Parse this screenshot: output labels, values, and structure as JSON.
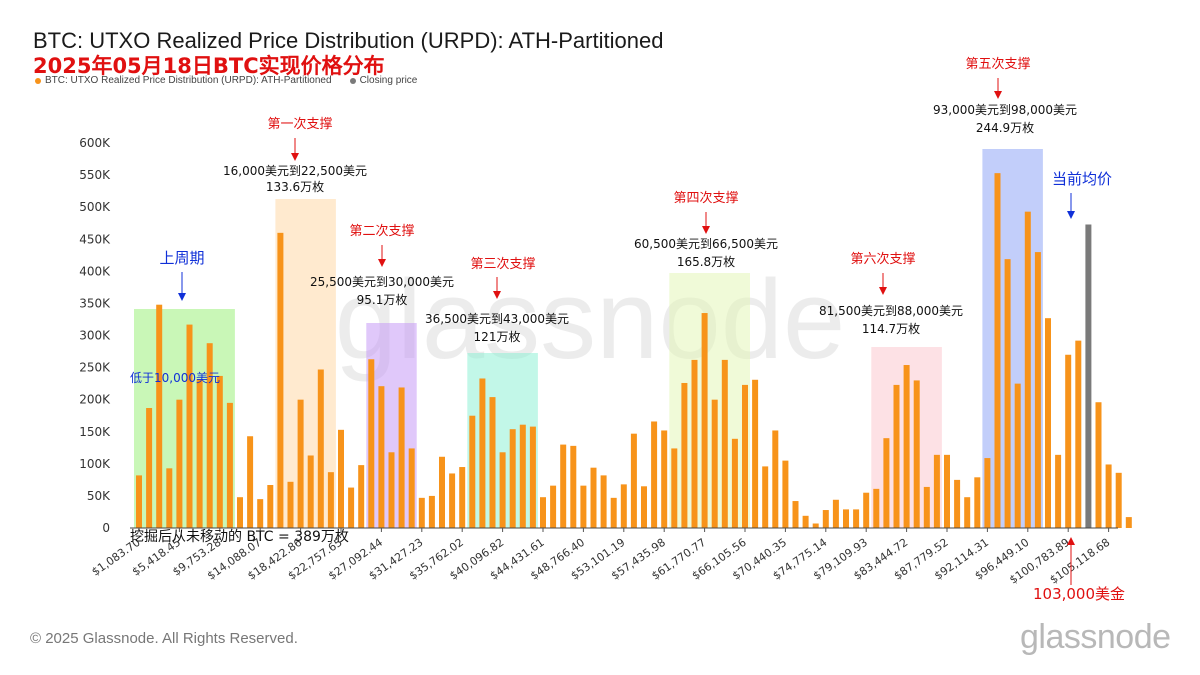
{
  "header": {
    "title": "BTC: UTXO Realized Price Distribution (URPD): ATH-Partitioned",
    "subtitle": "2025年05月18日BTC实现价格分布",
    "legend": [
      {
        "label": "BTC: UTXO Realized Price Distribution (URPD): ATH-Partitioned",
        "color": "#f7931a"
      },
      {
        "label": "Closing price",
        "color": "#7a7a7a"
      }
    ]
  },
  "footer": {
    "copyright": "© 2025 Glassnode. All Rights Reserved.",
    "brand": "glassnode",
    "watermark": "glassnode"
  },
  "chart_data": {
    "type": "bar",
    "ylim": [
      0,
      600000
    ],
    "ytick_labels": [
      "0",
      "50K",
      "100K",
      "150K",
      "200K",
      "250K",
      "300K",
      "350K",
      "400K",
      "450K",
      "500K",
      "550K",
      "600K"
    ],
    "ytick_values": [
      0,
      50000,
      100000,
      150000,
      200000,
      250000,
      300000,
      350000,
      400000,
      450000,
      500000,
      550000,
      600000
    ],
    "x_tick_labels": [
      "$1,083.70",
      "$5,418.45",
      "$9,753.28",
      "$14,088.07",
      "$18,422.86",
      "$22,757.65",
      "$27,092.44",
      "$31,427.23",
      "$35,762.02",
      "$40,096.82",
      "$44,431.61",
      "$48,766.40",
      "$53,101.19",
      "$57,435.98",
      "$61,770.77",
      "$66,105.56",
      "$70,440.35",
      "$74,775.14",
      "$79,109.93",
      "$83,444.72",
      "$87,779.52",
      "$92,114.31",
      "$96,449.10",
      "$100,783.89",
      "$105,118.68"
    ],
    "series": [
      {
        "name": "BTC: UTXO Realized Price Distribution (URPD): ATH-Partitioned",
        "color": "#f7931a",
        "values": [
          82000,
          187000,
          348000,
          93000,
          200000,
          317000,
          232000,
          288000,
          237000,
          195000,
          48000,
          143000,
          45000,
          67000,
          460000,
          72000,
          200000,
          113000,
          247000,
          87000,
          153000,
          63000,
          98000,
          263000,
          221000,
          118000,
          219000,
          124000,
          47000,
          50000,
          111000,
          85000,
          95000,
          175000,
          233000,
          204000,
          118000,
          154000,
          161000,
          158000,
          48000,
          66000,
          130000,
          128000,
          66000,
          94000,
          82000,
          47000,
          68000,
          147000,
          65000,
          166000,
          152000,
          124000,
          226000,
          262000,
          335000,
          200000,
          262000,
          139000,
          223000,
          231000,
          96000,
          152000,
          105000,
          42000,
          19000,
          7000,
          28000,
          44000,
          29000,
          29000,
          55000,
          61000,
          140000,
          223000,
          254000,
          230000,
          64000,
          114000,
          114000,
          75000,
          48000,
          79000,
          109000,
          553000,
          419000,
          225000,
          493000,
          430000,
          327000,
          114000,
          270000,
          292000,
          473000,
          196000,
          99000,
          86000,
          17000
        ]
      },
      {
        "name": "Closing price",
        "color": "#7a7a7a",
        "bar_index": 94,
        "value": 473000
      }
    ]
  },
  "annotations": {
    "prev_cycle": {
      "label": "上周期",
      "sub": "低于10,000美元"
    },
    "s1": {
      "title": "第一次支撑",
      "range": "16,000美元到22,500美元",
      "amount": "133.6万枚"
    },
    "s2": {
      "title": "第二次支撑",
      "range": "25,500美元到30,000美元",
      "amount": "95.1万枚"
    },
    "s3": {
      "title": "第三次支撑",
      "range": "36,500美元到43,000美元",
      "amount": "121万枚"
    },
    "s4": {
      "title": "第四次支撑",
      "range": "60,500美元到66,500美元",
      "amount": "165.8万枚"
    },
    "s5": {
      "title": "第五次支撑",
      "range": "93,000美元到98,000美元",
      "amount": "244.9万枚"
    },
    "s6": {
      "title": "第六次支撑",
      "range": "81,500美元到88,000美元",
      "amount": "114.7万枚"
    },
    "avg_price": "当前均价",
    "current_price": "103,000美金",
    "mined_unmoved": "挖掘后从未移动的 BTC = 389万枚"
  },
  "highlight_colors": {
    "prev_cycle": "#9cf07c",
    "s1": "#ffd8a8",
    "s2": "#c79af5",
    "s3": "#8ff0d6",
    "s4": "#e4f5b8",
    "s5": "#8fa6f5",
    "s6": "#fbc9cf",
    "red_text": "#e01010",
    "blue_text": "#1030d8"
  }
}
